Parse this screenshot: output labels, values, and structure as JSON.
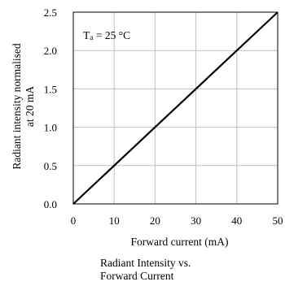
{
  "chart_data": {
    "type": "line",
    "title": "",
    "caption_lines": [
      "Radiant Intensity vs.",
      "Forward Current"
    ],
    "xlabel": "Forward current (mA)",
    "ylabel_lines": [
      "Radiant intensity normalised",
      "at 20 mA"
    ],
    "annotation": {
      "main": "T",
      "sub": "a",
      "rest": " = 25 °C"
    },
    "xlim": [
      0,
      50
    ],
    "ylim": [
      0,
      2.5
    ],
    "xticks": [
      0,
      10,
      20,
      30,
      40,
      50
    ],
    "xtick_labels": [
      "0",
      "10",
      "20",
      "30",
      "40",
      "50"
    ],
    "yticks": [
      0,
      0.5,
      1.0,
      1.5,
      2.0,
      2.5
    ],
    "ytick_labels": [
      "0.0",
      "0.5",
      "1.0",
      "1.5",
      "2.0",
      "2.5"
    ],
    "grid": true,
    "series": [
      {
        "x": [
          0,
          10,
          20,
          30,
          40,
          50
        ],
        "y": [
          0,
          0.5,
          1.0,
          1.5,
          2.0,
          2.5
        ],
        "color": "#000000"
      }
    ]
  }
}
